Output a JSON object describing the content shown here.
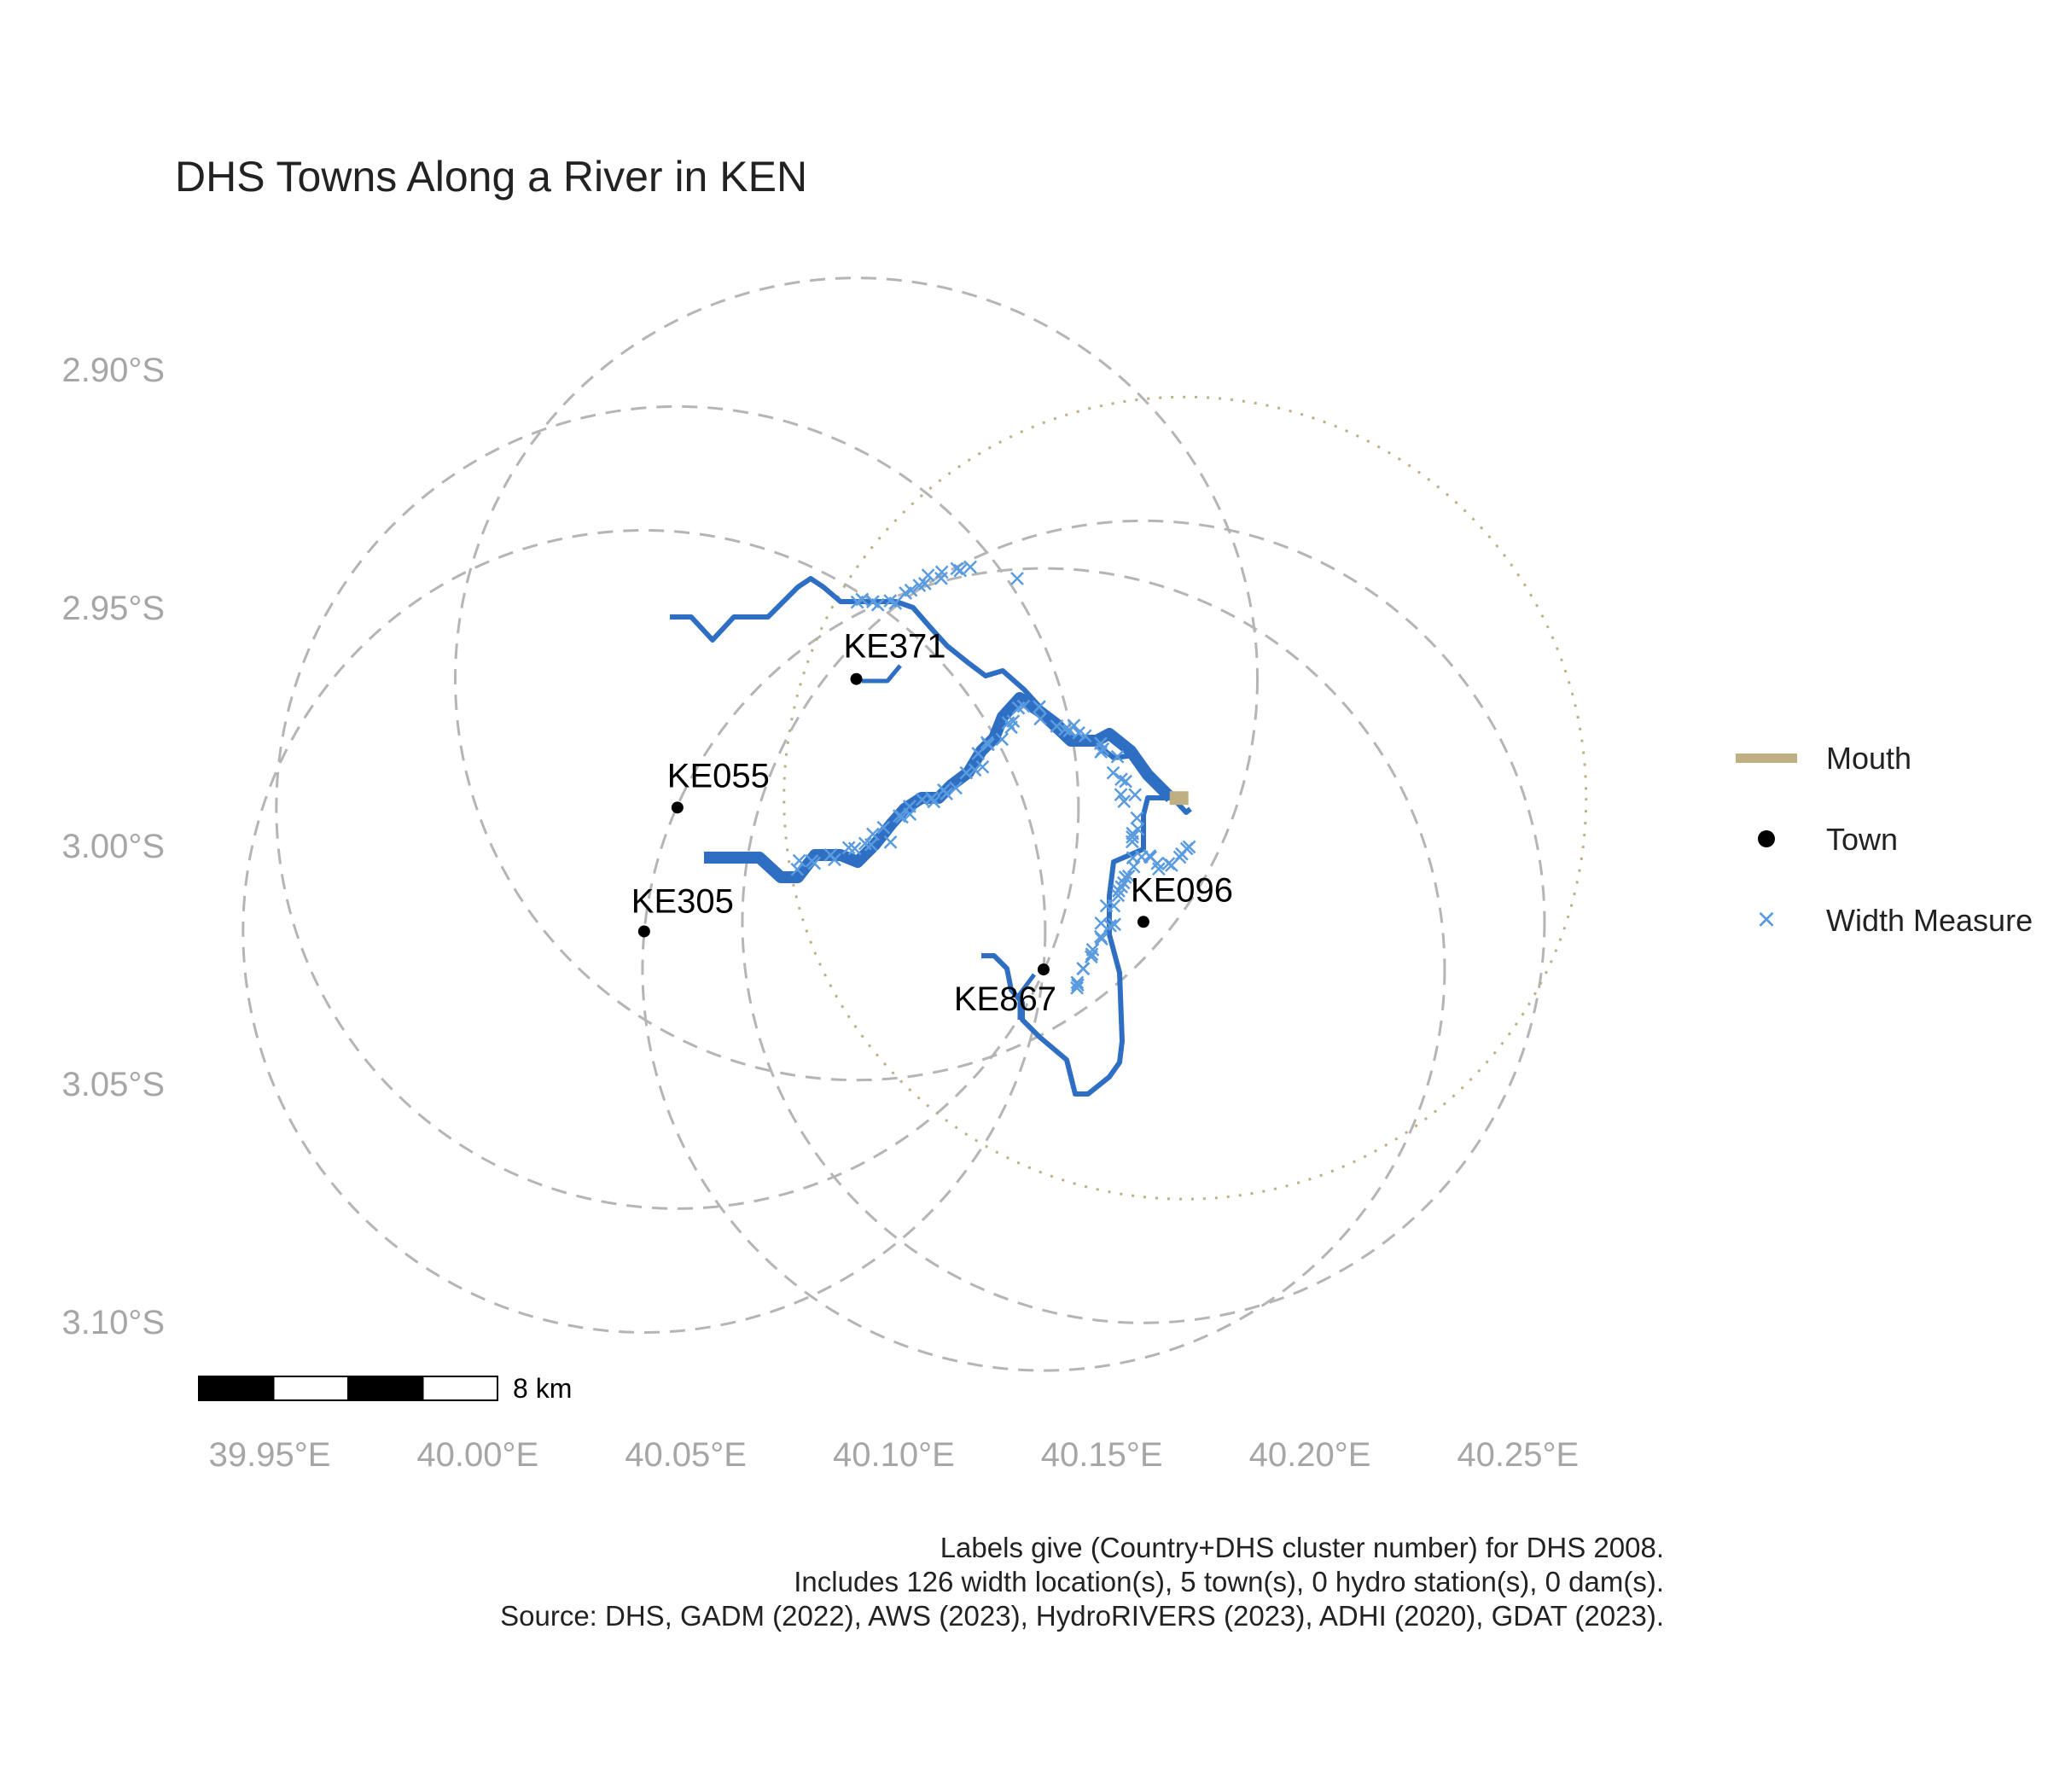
{
  "title": "DHS Towns Along a River in KEN",
  "axes": {
    "x_ticks": [
      "39.95°E",
      "40.00°E",
      "40.05°E",
      "40.10°E",
      "40.15°E",
      "40.20°E",
      "40.25°E"
    ],
    "y_ticks": [
      "2.90°S",
      "2.95°S",
      "3.00°S",
      "3.05°S",
      "3.10°S"
    ]
  },
  "scale_bar": {
    "label": "8 km",
    "length_km": 8
  },
  "legend": {
    "mouth": "Mouth",
    "town": "Town",
    "width_measure": "Width Measure"
  },
  "towns": [
    {
      "label": "KE371",
      "lon": 40.091,
      "lat": -2.965
    },
    {
      "label": "KE055",
      "lon": 40.048,
      "lat": -2.992
    },
    {
      "label": "KE305",
      "lon": 40.04,
      "lat": -3.018
    },
    {
      "label": "KE096",
      "lon": 40.16,
      "lat": -3.016
    },
    {
      "label": "KE867",
      "lon": 40.136,
      "lat": -3.026
    }
  ],
  "mouth": {
    "lon": 40.17,
    "lat": -2.99
  },
  "caption": [
    "Labels give (Country+DHS cluster number) for DHS 2008.",
    "Includes 126 width location(s), 5 town(s), 0 hydro station(s), 0 dam(s).",
    "Source: DHS, GADM (2022), AWS (2023), HydroRIVERS (2023), ADHI (2020), GDAT (2023)."
  ],
  "colors": {
    "river": "#2e6fc4",
    "width_measure": "#5a9be0",
    "mouth": "#bfb084",
    "town": "#000000",
    "buffer": "#b5b5b5",
    "axis_text": "#a6a6a6"
  }
}
